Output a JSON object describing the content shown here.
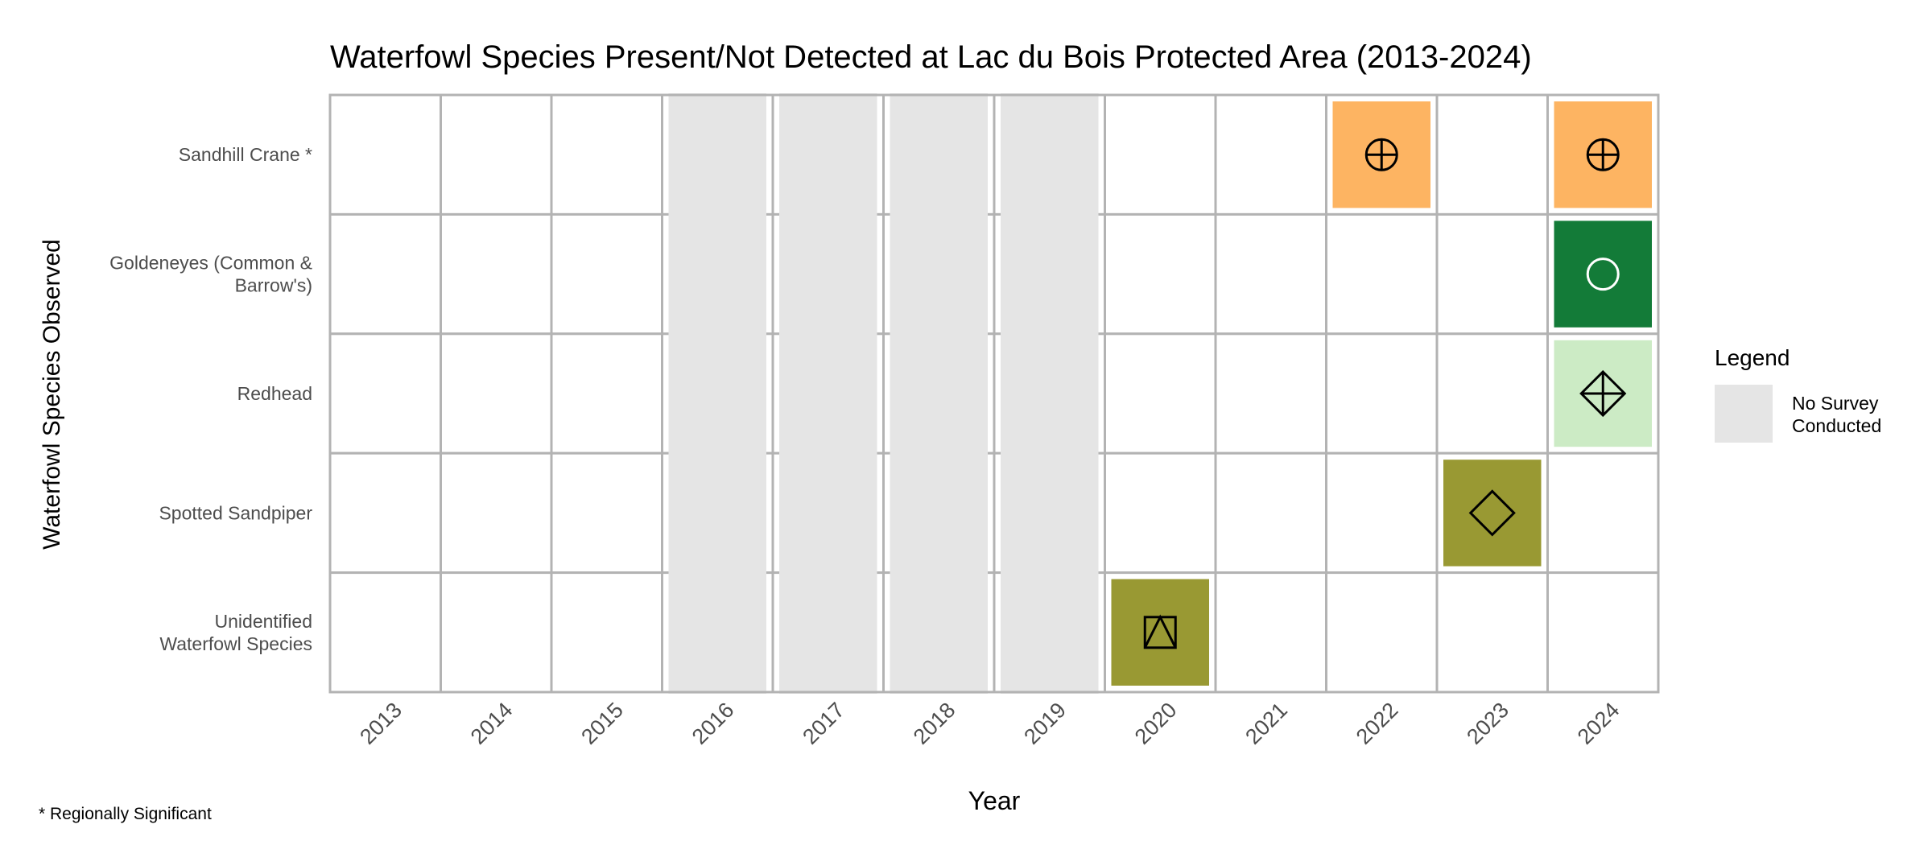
{
  "chart_data": {
    "type": "heatmap",
    "title": "Waterfowl Species Present/Not Detected at Lac du Bois Protected Area (2013-2024)",
    "xlabel": "Year",
    "ylabel": "Waterfowl Species Observed",
    "years": [
      "2013",
      "2014",
      "2015",
      "2016",
      "2017",
      "2018",
      "2019",
      "2020",
      "2021",
      "2022",
      "2023",
      "2024"
    ],
    "species": [
      {
        "label": "Sandhill Crane *",
        "lines": [
          "Sandhill Crane *"
        ]
      },
      {
        "label": "Goldeneyes (Common & Barrow's)",
        "lines": [
          "Goldeneyes (Common &",
          "Barrow's)"
        ]
      },
      {
        "label": "Redhead",
        "lines": [
          "Redhead"
        ]
      },
      {
        "label": "Spotted Sandpiper",
        "lines": [
          "Spotted Sandpiper"
        ]
      },
      {
        "label": "Unidentified Waterfowl Species",
        "lines": [
          "Unidentified",
          "Waterfowl Species"
        ]
      }
    ],
    "no_survey_years": [
      "2016",
      "2017",
      "2018",
      "2019"
    ],
    "detections": [
      {
        "species": "Sandhill Crane *",
        "year": "2022",
        "color": "#fdb462",
        "marker": "circle-plus",
        "marker_color": "#000000"
      },
      {
        "species": "Sandhill Crane *",
        "year": "2024",
        "color": "#fdb462",
        "marker": "circle-plus",
        "marker_color": "#000000"
      },
      {
        "species": "Goldeneyes (Common & Barrow's)",
        "year": "2024",
        "color": "#137b38",
        "marker": "circle-open",
        "marker_color": "#ffffff"
      },
      {
        "species": "Redhead",
        "year": "2024",
        "color": "#ccebc5",
        "marker": "diamond-plus",
        "marker_color": "#000000"
      },
      {
        "species": "Spotted Sandpiper",
        "year": "2023",
        "color": "#999933",
        "marker": "diamond-open",
        "marker_color": "#000000"
      },
      {
        "species": "Unidentified Waterfowl Species",
        "year": "2020",
        "color": "#999933",
        "marker": "square-triangle",
        "marker_color": "#000000"
      }
    ],
    "legend": {
      "title": "Legend",
      "entries": [
        {
          "label_lines": [
            "No Survey",
            "Conducted"
          ],
          "color": "#e5e5e5"
        }
      ],
      "position": "right"
    },
    "grid": true
  },
  "footnote": "* Regionally Significant",
  "colors": {
    "no_survey": "#e5e5e5",
    "grid": "#b3b3b3"
  }
}
